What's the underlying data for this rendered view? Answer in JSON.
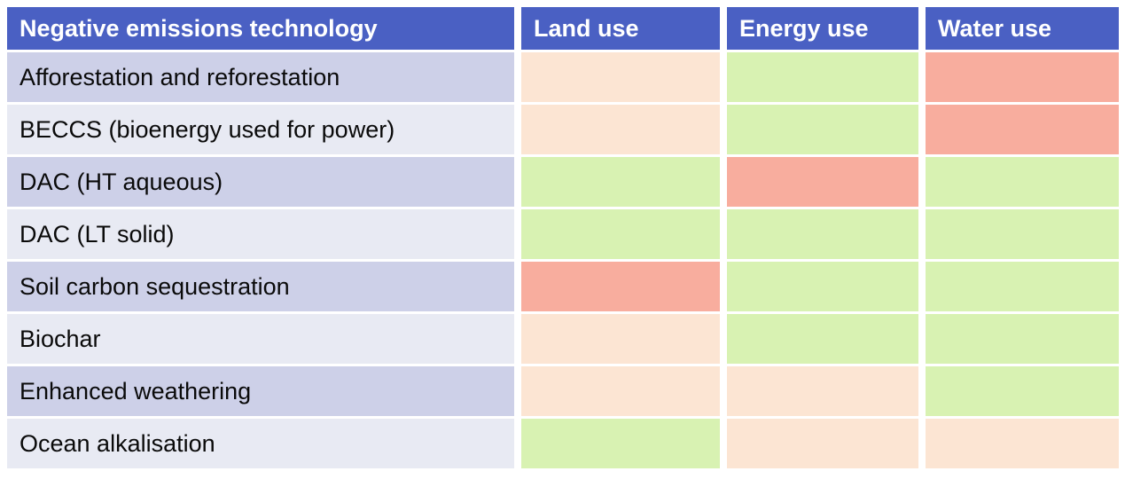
{
  "table": {
    "headers": {
      "technology": "Negative emissions technology",
      "land": "Land use",
      "energy": "Energy use",
      "water": "Water use"
    },
    "rows": [
      {
        "label": "Afforestation and reforestation",
        "land": "peach",
        "energy": "green",
        "water": "salmon"
      },
      {
        "label": "BECCS (bioenergy used for power)",
        "land": "peach",
        "energy": "green",
        "water": "salmon"
      },
      {
        "label": "DAC (HT aqueous)",
        "land": "green",
        "energy": "salmon",
        "water": "green"
      },
      {
        "label": "DAC (LT solid)",
        "land": "green",
        "energy": "green",
        "water": "green"
      },
      {
        "label": "Soil carbon sequestration",
        "land": "salmon",
        "energy": "green",
        "water": "green"
      },
      {
        "label": "Biochar",
        "land": "peach",
        "energy": "green",
        "water": "green"
      },
      {
        "label": "Enhanced weathering",
        "land": "peach",
        "energy": "peach",
        "water": "green"
      },
      {
        "label": "Ocean alkalisation",
        "land": "green",
        "energy": "peach",
        "water": "peach"
      }
    ]
  },
  "colors": {
    "header_bg": "#4a60c3",
    "header_text": "#ffffff",
    "row_label_dark": "#cdd0e8",
    "row_label_light": "#e8eaf3",
    "cell_green": "#d8f2b2",
    "cell_peach": "#fce5d3",
    "cell_salmon": "#f8ad9e"
  },
  "chart_data": {
    "type": "heatmap",
    "title": "Negative emissions technology",
    "columns": [
      "Land use",
      "Energy use",
      "Water use"
    ],
    "rows": [
      "Afforestation and reforestation",
      "BECCS (bioenergy used for power)",
      "DAC (HT aqueous)",
      "DAC (LT solid)",
      "Soil carbon sequestration",
      "Biochar",
      "Enhanced weathering",
      "Ocean alkalisation"
    ],
    "values": [
      [
        "peach",
        "green",
        "salmon"
      ],
      [
        "peach",
        "green",
        "salmon"
      ],
      [
        "green",
        "salmon",
        "green"
      ],
      [
        "green",
        "green",
        "green"
      ],
      [
        "salmon",
        "green",
        "green"
      ],
      [
        "peach",
        "green",
        "green"
      ],
      [
        "peach",
        "peach",
        "green"
      ],
      [
        "green",
        "peach",
        "peach"
      ]
    ],
    "color_scale": {
      "green": "#d8f2b2",
      "peach": "#fce5d3",
      "salmon": "#f8ad9e"
    },
    "legend_position": "none",
    "grid": false
  }
}
